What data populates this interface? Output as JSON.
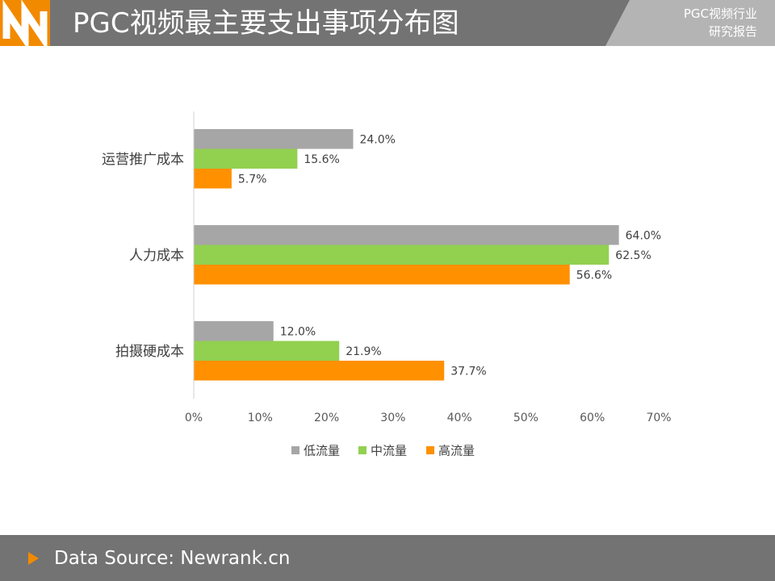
{
  "header": {
    "title": "PGC视频最主要支出事项分布图",
    "corner_line1": "PGC视频行业",
    "corner_line2": "研究报告"
  },
  "footer": {
    "source": "Data Source: Newrank.cn"
  },
  "colors": {
    "header_bg": "#737373",
    "accent_orange": "#f28a00",
    "low": "#a6a6a6",
    "mid": "#92d050",
    "high": "#ff9000"
  },
  "chart_data": {
    "type": "bar",
    "orientation": "horizontal",
    "title": "",
    "xlabel": "",
    "ylabel": "",
    "categories": [
      "运营推广成本",
      "人力成本",
      "拍摄硬成本"
    ],
    "series": [
      {
        "name": "低流量",
        "values": [
          24.0,
          64.0,
          12.0
        ],
        "labels": [
          "24.0%",
          "64.0%",
          "12.0%"
        ],
        "color": "#a6a6a6"
      },
      {
        "name": "中流量",
        "values": [
          15.6,
          62.5,
          21.9
        ],
        "labels": [
          "15.6%",
          "62.5%",
          "21.9%"
        ],
        "color": "#92d050"
      },
      {
        "name": "高流量",
        "values": [
          5.7,
          56.6,
          37.7
        ],
        "labels": [
          "5.7%",
          "56.6%",
          "37.7%"
        ],
        "color": "#ff9000"
      }
    ],
    "xlim": [
      0,
      70
    ],
    "x_ticks": [
      "0%",
      "10%",
      "20%",
      "30%",
      "40%",
      "50%",
      "60%",
      "70%"
    ],
    "grid": false,
    "legend_position": "bottom"
  }
}
